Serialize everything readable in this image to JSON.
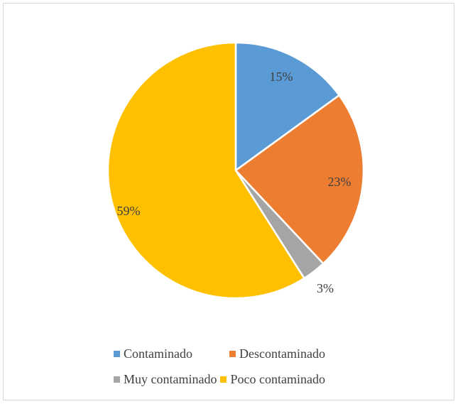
{
  "chart_data": {
    "type": "pie",
    "title": "",
    "categories": [
      "Contaminado",
      "Descontaminado",
      "Muy contaminado",
      "Poco contaminado"
    ],
    "values": [
      15,
      23,
      3,
      59
    ],
    "data_labels": [
      "15%",
      "23%",
      "3%",
      "59%"
    ],
    "colors": [
      "#5b9bd5",
      "#ed7d31",
      "#a5a5a5",
      "#ffc000"
    ],
    "start_angle_deg": 0,
    "direction": "clockwise",
    "legend_position": "bottom"
  }
}
